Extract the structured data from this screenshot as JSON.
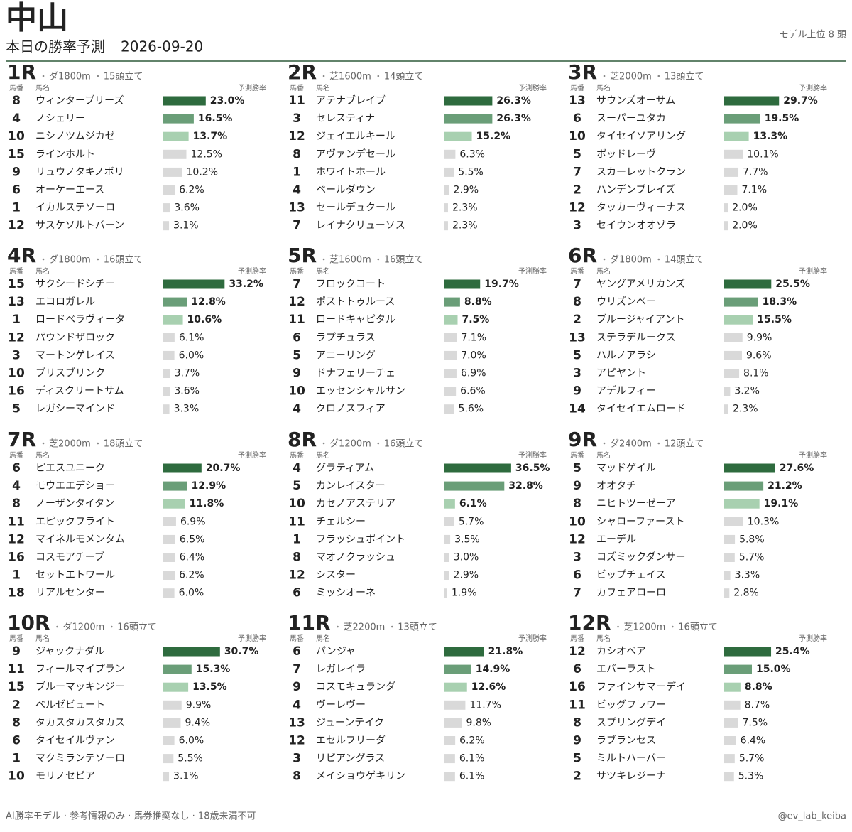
{
  "header": {
    "title": "中山",
    "subtitle": "本日の勝率予測",
    "date": "2026-09-20",
    "note": "モデル上位 8 頭"
  },
  "columns": {
    "number": "馬番",
    "name": "馬名",
    "rate": "予測勝率"
  },
  "races": [
    {
      "race": "1R",
      "course": "ダ1800m",
      "field": "15頭立て",
      "entries": [
        {
          "no": 8,
          "name": "ウィンターブリーズ",
          "rate": 23.0,
          "rate_label": "23.0%"
        },
        {
          "no": 4,
          "name": "ノシェリー",
          "rate": 16.5,
          "rate_label": "16.5%"
        },
        {
          "no": 10,
          "name": "ニシノツムジカゼ",
          "rate": 13.7,
          "rate_label": "13.7%"
        },
        {
          "no": 15,
          "name": "ラインホルト",
          "rate": 12.5,
          "rate_label": "12.5%"
        },
        {
          "no": 9,
          "name": "リュウノタキノボリ",
          "rate": 10.2,
          "rate_label": "10.2%"
        },
        {
          "no": 6,
          "name": "オーケーエース",
          "rate": 6.2,
          "rate_label": "6.2%"
        },
        {
          "no": 1,
          "name": "イカルステソーロ",
          "rate": 3.6,
          "rate_label": "3.6%"
        },
        {
          "no": 12,
          "name": "サスケソルトバーン",
          "rate": 3.1,
          "rate_label": "3.1%"
        }
      ]
    },
    {
      "race": "2R",
      "course": "芝1600m",
      "field": "14頭立て",
      "entries": [
        {
          "no": 11,
          "name": "アテナブレイブ",
          "rate": 26.3,
          "rate_label": "26.3%"
        },
        {
          "no": 3,
          "name": "セレスティナ",
          "rate": 26.3,
          "rate_label": "26.3%"
        },
        {
          "no": 12,
          "name": "ジェイエルキール",
          "rate": 15.2,
          "rate_label": "15.2%"
        },
        {
          "no": 8,
          "name": "アヴァンデセール",
          "rate": 6.3,
          "rate_label": "6.3%"
        },
        {
          "no": 1,
          "name": "ホワイトホール",
          "rate": 5.5,
          "rate_label": "5.5%"
        },
        {
          "no": 4,
          "name": "ベールダウン",
          "rate": 2.9,
          "rate_label": "2.9%"
        },
        {
          "no": 13,
          "name": "セールデュクール",
          "rate": 2.3,
          "rate_label": "2.3%"
        },
        {
          "no": 7,
          "name": "レイナクリューソス",
          "rate": 2.3,
          "rate_label": "2.3%"
        }
      ]
    },
    {
      "race": "3R",
      "course": "芝2000m",
      "field": "13頭立て",
      "entries": [
        {
          "no": 13,
          "name": "サウンズオーサム",
          "rate": 29.7,
          "rate_label": "29.7%"
        },
        {
          "no": 6,
          "name": "スーパーユタカ",
          "rate": 19.5,
          "rate_label": "19.5%"
        },
        {
          "no": 10,
          "name": "タイセイソアリング",
          "rate": 13.3,
          "rate_label": "13.3%"
        },
        {
          "no": 5,
          "name": "ボッドレーヴ",
          "rate": 10.1,
          "rate_label": "10.1%"
        },
        {
          "no": 7,
          "name": "スカーレットクラン",
          "rate": 7.7,
          "rate_label": "7.7%"
        },
        {
          "no": 2,
          "name": "ハンデンブレイズ",
          "rate": 7.1,
          "rate_label": "7.1%"
        },
        {
          "no": 12,
          "name": "タッカーヴィーナス",
          "rate": 2.0,
          "rate_label": "2.0%"
        },
        {
          "no": 3,
          "name": "セイウンオオゾラ",
          "rate": 2.0,
          "rate_label": "2.0%"
        }
      ]
    },
    {
      "race": "4R",
      "course": "ダ1800m",
      "field": "16頭立て",
      "entries": [
        {
          "no": 15,
          "name": "サクシードシチー",
          "rate": 33.2,
          "rate_label": "33.2%"
        },
        {
          "no": 13,
          "name": "エコロガレル",
          "rate": 12.8,
          "rate_label": "12.8%"
        },
        {
          "no": 1,
          "name": "ロードベラヴィータ",
          "rate": 10.6,
          "rate_label": "10.6%"
        },
        {
          "no": 12,
          "name": "パウンドザロック",
          "rate": 6.1,
          "rate_label": "6.1%"
        },
        {
          "no": 3,
          "name": "マートンゲレイス",
          "rate": 6.0,
          "rate_label": "6.0%"
        },
        {
          "no": 10,
          "name": "ブリスブリンク",
          "rate": 3.7,
          "rate_label": "3.7%"
        },
        {
          "no": 16,
          "name": "ディスクリートサム",
          "rate": 3.6,
          "rate_label": "3.6%"
        },
        {
          "no": 5,
          "name": "レガシーマインド",
          "rate": 3.3,
          "rate_label": "3.3%"
        }
      ]
    },
    {
      "race": "5R",
      "course": "芝1600m",
      "field": "16頭立て",
      "entries": [
        {
          "no": 7,
          "name": "フロックコート",
          "rate": 19.7,
          "rate_label": "19.7%"
        },
        {
          "no": 12,
          "name": "ポストトゥルース",
          "rate": 8.8,
          "rate_label": "8.8%"
        },
        {
          "no": 11,
          "name": "ロードキャピタル",
          "rate": 7.5,
          "rate_label": "7.5%"
        },
        {
          "no": 6,
          "name": "ラプチュラス",
          "rate": 7.1,
          "rate_label": "7.1%"
        },
        {
          "no": 5,
          "name": "アニーリング",
          "rate": 7.0,
          "rate_label": "7.0%"
        },
        {
          "no": 9,
          "name": "ドナフェリーチェ",
          "rate": 6.9,
          "rate_label": "6.9%"
        },
        {
          "no": 10,
          "name": "エッセンシャルサン",
          "rate": 6.6,
          "rate_label": "6.6%"
        },
        {
          "no": 4,
          "name": "クロノスフィア",
          "rate": 5.6,
          "rate_label": "5.6%"
        }
      ]
    },
    {
      "race": "6R",
      "course": "ダ1800m",
      "field": "14頭立て",
      "entries": [
        {
          "no": 7,
          "name": "ヤングアメリカンズ",
          "rate": 25.5,
          "rate_label": "25.5%"
        },
        {
          "no": 8,
          "name": "ウリズンベー",
          "rate": 18.3,
          "rate_label": "18.3%"
        },
        {
          "no": 2,
          "name": "ブルージャイアント",
          "rate": 15.5,
          "rate_label": "15.5%"
        },
        {
          "no": 13,
          "name": "ステラデルークス",
          "rate": 9.9,
          "rate_label": "9.9%"
        },
        {
          "no": 5,
          "name": "ハルノアラシ",
          "rate": 9.6,
          "rate_label": "9.6%"
        },
        {
          "no": 3,
          "name": "アピヤント",
          "rate": 8.1,
          "rate_label": "8.1%"
        },
        {
          "no": 9,
          "name": "アデルフィー",
          "rate": 3.2,
          "rate_label": "3.2%"
        },
        {
          "no": 14,
          "name": "タイセイエムロード",
          "rate": 2.3,
          "rate_label": "2.3%"
        }
      ]
    },
    {
      "race": "7R",
      "course": "芝2000m",
      "field": "18頭立て",
      "entries": [
        {
          "no": 6,
          "name": "ピエスユニーク",
          "rate": 20.7,
          "rate_label": "20.7%"
        },
        {
          "no": 4,
          "name": "モウエエデショー",
          "rate": 12.9,
          "rate_label": "12.9%"
        },
        {
          "no": 8,
          "name": "ノーザンタイタン",
          "rate": 11.8,
          "rate_label": "11.8%"
        },
        {
          "no": 11,
          "name": "エピックフライト",
          "rate": 6.9,
          "rate_label": "6.9%"
        },
        {
          "no": 12,
          "name": "マイネルモメンタム",
          "rate": 6.5,
          "rate_label": "6.5%"
        },
        {
          "no": 16,
          "name": "コスモアチーブ",
          "rate": 6.4,
          "rate_label": "6.4%"
        },
        {
          "no": 1,
          "name": "セットエトワール",
          "rate": 6.2,
          "rate_label": "6.2%"
        },
        {
          "no": 18,
          "name": "リアルセンター",
          "rate": 6.0,
          "rate_label": "6.0%"
        }
      ]
    },
    {
      "race": "8R",
      "course": "ダ1200m",
      "field": "16頭立て",
      "entries": [
        {
          "no": 4,
          "name": "グラティアム",
          "rate": 36.5,
          "rate_label": "36.5%"
        },
        {
          "no": 5,
          "name": "カンレイスター",
          "rate": 32.8,
          "rate_label": "32.8%"
        },
        {
          "no": 10,
          "name": "カセノアステリア",
          "rate": 6.1,
          "rate_label": "6.1%"
        },
        {
          "no": 11,
          "name": "チェルシー",
          "rate": 5.7,
          "rate_label": "5.7%"
        },
        {
          "no": 1,
          "name": "フラッシュポイント",
          "rate": 3.5,
          "rate_label": "3.5%"
        },
        {
          "no": 8,
          "name": "マオノクラッシュ",
          "rate": 3.0,
          "rate_label": "3.0%"
        },
        {
          "no": 12,
          "name": "シスター",
          "rate": 2.9,
          "rate_label": "2.9%"
        },
        {
          "no": 6,
          "name": "ミッシオーネ",
          "rate": 1.9,
          "rate_label": "1.9%"
        }
      ]
    },
    {
      "race": "9R",
      "course": "ダ2400m",
      "field": "12頭立て",
      "entries": [
        {
          "no": 5,
          "name": "マッドゲイル",
          "rate": 27.6,
          "rate_label": "27.6%"
        },
        {
          "no": 9,
          "name": "オオタチ",
          "rate": 21.2,
          "rate_label": "21.2%"
        },
        {
          "no": 8,
          "name": "ニヒトツーゼーア",
          "rate": 19.1,
          "rate_label": "19.1%"
        },
        {
          "no": 10,
          "name": "シャローファースト",
          "rate": 10.3,
          "rate_label": "10.3%"
        },
        {
          "no": 12,
          "name": "エーデル",
          "rate": 5.8,
          "rate_label": "5.8%"
        },
        {
          "no": 3,
          "name": "コズミックダンサー",
          "rate": 5.7,
          "rate_label": "5.7%"
        },
        {
          "no": 6,
          "name": "ビップチェイス",
          "rate": 3.3,
          "rate_label": "3.3%"
        },
        {
          "no": 7,
          "name": "カフェアローロ",
          "rate": 2.8,
          "rate_label": "2.8%"
        }
      ]
    },
    {
      "race": "10R",
      "course": "ダ1200m",
      "field": "16頭立て",
      "entries": [
        {
          "no": 9,
          "name": "ジャックナダル",
          "rate": 30.7,
          "rate_label": "30.7%"
        },
        {
          "no": 11,
          "name": "フィールマイプラン",
          "rate": 15.3,
          "rate_label": "15.3%"
        },
        {
          "no": 15,
          "name": "ブルーマッキンジー",
          "rate": 13.5,
          "rate_label": "13.5%"
        },
        {
          "no": 2,
          "name": "ベルゼビュート",
          "rate": 9.9,
          "rate_label": "9.9%"
        },
        {
          "no": 8,
          "name": "タカスタカスタカス",
          "rate": 9.4,
          "rate_label": "9.4%"
        },
        {
          "no": 6,
          "name": "タイセイルヴァン",
          "rate": 6.0,
          "rate_label": "6.0%"
        },
        {
          "no": 1,
          "name": "マクミランテソーロ",
          "rate": 5.5,
          "rate_label": "5.5%"
        },
        {
          "no": 10,
          "name": "モリノセピア",
          "rate": 3.1,
          "rate_label": "3.1%"
        }
      ]
    },
    {
      "race": "11R",
      "course": "芝2200m",
      "field": "13頭立て",
      "entries": [
        {
          "no": 6,
          "name": "パンジャ",
          "rate": 21.8,
          "rate_label": "21.8%"
        },
        {
          "no": 7,
          "name": "レガレイラ",
          "rate": 14.9,
          "rate_label": "14.9%"
        },
        {
          "no": 9,
          "name": "コスモキュランダ",
          "rate": 12.6,
          "rate_label": "12.6%"
        },
        {
          "no": 4,
          "name": "ヴーレヴー",
          "rate": 11.7,
          "rate_label": "11.7%"
        },
        {
          "no": 13,
          "name": "ジューンテイク",
          "rate": 9.8,
          "rate_label": "9.8%"
        },
        {
          "no": 12,
          "name": "エセルフリーダ",
          "rate": 6.2,
          "rate_label": "6.2%"
        },
        {
          "no": 3,
          "name": "リビアングラス",
          "rate": 6.1,
          "rate_label": "6.1%"
        },
        {
          "no": 8,
          "name": "メイショウゲキリン",
          "rate": 6.1,
          "rate_label": "6.1%"
        }
      ]
    },
    {
      "race": "12R",
      "course": "芝1200m",
      "field": "16頭立て",
      "entries": [
        {
          "no": 12,
          "name": "カシオペア",
          "rate": 25.4,
          "rate_label": "25.4%"
        },
        {
          "no": 6,
          "name": "エバーラスト",
          "rate": 15.0,
          "rate_label": "15.0%"
        },
        {
          "no": 16,
          "name": "ファインサマーデイ",
          "rate": 8.8,
          "rate_label": "8.8%"
        },
        {
          "no": 11,
          "name": "ビッグフラワー",
          "rate": 8.7,
          "rate_label": "8.7%"
        },
        {
          "no": 8,
          "name": "スプリングデイ",
          "rate": 7.5,
          "rate_label": "7.5%"
        },
        {
          "no": 9,
          "name": "ラブランセス",
          "rate": 6.4,
          "rate_label": "6.4%"
        },
        {
          "no": 5,
          "name": "ミルトハーバー",
          "rate": 5.7,
          "rate_label": "5.7%"
        },
        {
          "no": 2,
          "name": "サツキレジーナ",
          "rate": 5.3,
          "rate_label": "5.3%"
        }
      ]
    }
  ],
  "footer": {
    "disclaimer": "AI勝率モデル · 参考情報のみ · 馬券推奨なし · 18歳未満不可",
    "credit": "@ev_lab_keiba"
  }
}
